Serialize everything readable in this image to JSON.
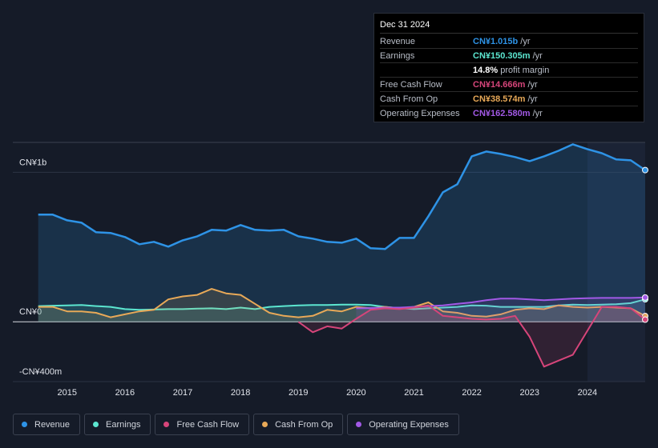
{
  "chart_data": {
    "type": "line",
    "x": [
      2014.5,
      2014.75,
      2015,
      2015.25,
      2015.5,
      2015.75,
      2016,
      2016.25,
      2016.5,
      2016.75,
      2017,
      2017.25,
      2017.5,
      2017.75,
      2018,
      2018.25,
      2018.5,
      2018.75,
      2019,
      2019.25,
      2019.5,
      2019.75,
      2020,
      2020.25,
      2020.5,
      2020.75,
      2021,
      2021.25,
      2021.5,
      2021.75,
      2022,
      2022.25,
      2022.5,
      2022.75,
      2023,
      2023.25,
      2023.5,
      2023.75,
      2024,
      2024.25,
      2024.5,
      2024.75,
      2025
    ],
    "series": [
      {
        "name": "Revenue",
        "color": "#2e93e6",
        "values": [
          717,
          717,
          679,
          663,
          599,
          594,
          567,
          519,
          535,
          503,
          545,
          572,
          615,
          610,
          647,
          615,
          610,
          615,
          572,
          556,
          535,
          529,
          556,
          492,
          487,
          561,
          561,
          706,
          866,
          920,
          1107,
          1139,
          1123,
          1102,
          1075,
          1107,
          1144,
          1187,
          1155,
          1128,
          1086,
          1080,
          1015
        ]
      },
      {
        "name": "Earnings",
        "color": "#5ce6d0",
        "values": [
          105,
          108,
          110,
          112,
          105,
          100,
          85,
          80,
          82,
          85,
          85,
          88,
          90,
          85,
          95,
          85,
          100,
          105,
          110,
          112,
          112,
          115,
          115,
          112,
          100,
          92,
          85,
          90,
          95,
          100,
          110,
          108,
          100,
          100,
          100,
          100,
          110,
          115,
          112,
          115,
          118,
          125,
          150.305
        ]
      },
      {
        "name": "Free Cash Flow",
        "color": "#d6457a",
        "values": [
          null,
          null,
          null,
          null,
          null,
          null,
          null,
          null,
          null,
          null,
          null,
          null,
          null,
          null,
          null,
          null,
          null,
          null,
          0,
          -70,
          -30,
          -45,
          20,
          80,
          90,
          85,
          95,
          110,
          40,
          30,
          20,
          15,
          20,
          40,
          -100,
          -300,
          -260,
          -220,
          -60,
          100,
          100,
          90,
          14.666
        ]
      },
      {
        "name": "Cash From Op",
        "color": "#e8a958",
        "values": [
          100,
          100,
          70,
          70,
          60,
          30,
          50,
          70,
          80,
          150,
          170,
          180,
          220,
          190,
          180,
          120,
          60,
          40,
          30,
          40,
          80,
          70,
          100,
          90,
          100,
          90,
          100,
          130,
          70,
          60,
          40,
          35,
          50,
          80,
          90,
          85,
          110,
          100,
          95,
          100,
          95,
          90,
          38.574
        ]
      },
      {
        "name": "Operating Expenses",
        "color": "#a259e6",
        "values": [
          null,
          null,
          null,
          null,
          null,
          null,
          null,
          null,
          null,
          null,
          null,
          null,
          null,
          null,
          null,
          null,
          null,
          null,
          null,
          null,
          null,
          null,
          90,
          92,
          95,
          95,
          100,
          105,
          110,
          120,
          130,
          145,
          155,
          155,
          150,
          145,
          150,
          155,
          158,
          160,
          160,
          160,
          162.58
        ]
      }
    ],
    "xlim": [
      2014.06,
      2025
    ],
    "xticks": [
      2015,
      2016,
      2017,
      2018,
      2019,
      2020,
      2021,
      2022,
      2023,
      2024
    ],
    "ylim": [
      -400,
      1200
    ],
    "yticks": [
      {
        "value": -400,
        "label": "-CN¥400m"
      },
      {
        "value": 0,
        "label": "CN¥0"
      },
      {
        "value": 1000,
        "label": "CN¥1b"
      }
    ],
    "grid": true,
    "tooltip": {
      "title": "Dec 31 2024",
      "rows": [
        {
          "label": "Revenue",
          "value": "CN¥1.015b",
          "unit": "/yr"
        },
        {
          "label": "Earnings",
          "value": "CN¥150.305m",
          "unit": "/yr"
        },
        {
          "label": "",
          "value": "14.8%",
          "unit": "profit margin"
        },
        {
          "label": "Free Cash Flow",
          "value": "CN¥14.666m",
          "unit": "/yr"
        },
        {
          "label": "Cash From Op",
          "value": "CN¥38.574m",
          "unit": "/yr"
        },
        {
          "label": "Operating Expenses",
          "value": "CN¥162.580m",
          "unit": "/yr"
        }
      ]
    }
  }
}
